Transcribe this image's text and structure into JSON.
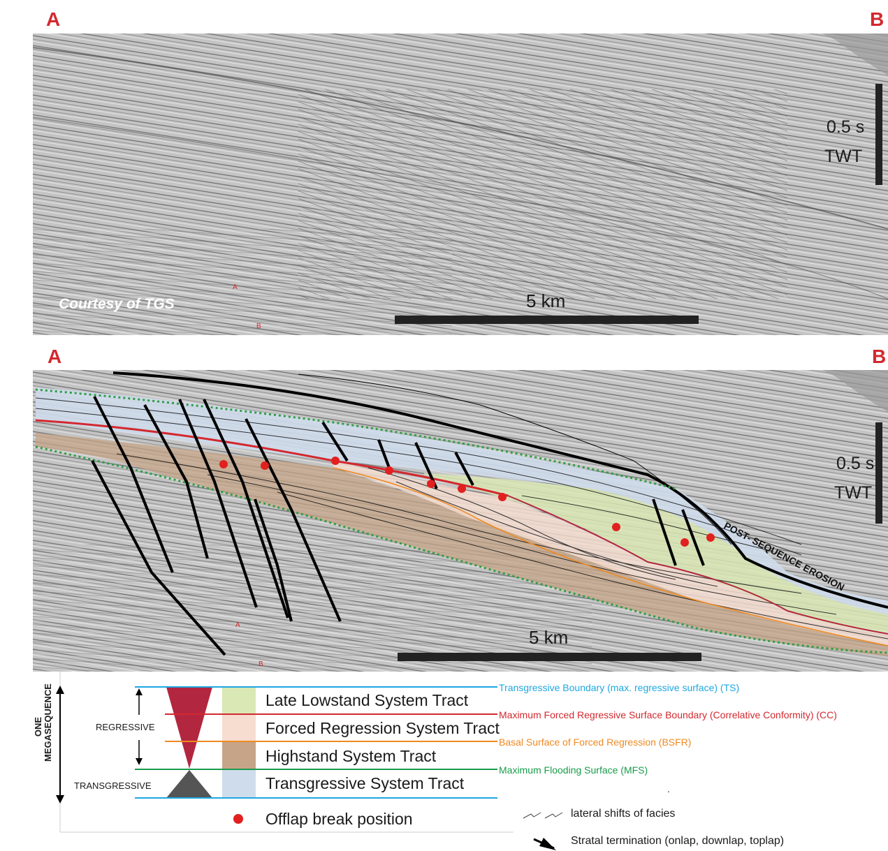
{
  "top_panel": {
    "label_left": "A",
    "label_right": "B",
    "courtesy": "Courtesy of  TGS",
    "scale_label": "5 km",
    "time_scale_value": "0.5 s",
    "time_scale_unit": "TWT",
    "small_a": "A",
    "small_b": "B"
  },
  "bottom_panel": {
    "label_left": "A",
    "label_right": "B",
    "scale_label": "5 km",
    "time_scale_value": "0.5 s",
    "time_scale_unit": "TWT",
    "erosion_label": "POST- SEQUENCE  EROSION",
    "small_a": "A",
    "small_b": "B"
  },
  "legend": {
    "megasequence_line1": "ONE",
    "megasequence_line2": "MEGASEQUENCE",
    "regressive": "REGRESSIVE",
    "transgressive": "TRANSGRESSIVE",
    "tracts": [
      {
        "label": "Late Lowstand System Tract",
        "color": "#d9e8b4"
      },
      {
        "label": "Forced Regression System Tract",
        "color": "#f6ddd0"
      },
      {
        "label": "Highstand System Tract",
        "color": "#c6a487"
      },
      {
        "label": "Transgressive System Tract",
        "color": "#cfdcec"
      }
    ],
    "surfaces": [
      {
        "label": "Transgressive Boundary (max. regressive surface) (TS)",
        "color": "#1ea7e1"
      },
      {
        "label": "Maximum Forced Regressive Surface Boundary (Correlative Conformity) (CC)",
        "color": "#d3282e"
      },
      {
        "label": "Basal Surface of Forced Regression (BSFR)",
        "color": "#ef8a22"
      },
      {
        "label": "Maximum Flooding Surface (MFS)",
        "color": "#1a9b4b"
      }
    ],
    "offlap_label": "Offlap break position",
    "lateral_shifts": "lateral shifts of facies",
    "stratal_termination": "Stratal termination (onlap, downlap, toplap)",
    "dot": "."
  },
  "colors": {
    "label_red": "#d3282e",
    "regressive_wedge": "#b3263f",
    "transgressive_wedge": "#555555",
    "mfs_dotted": "#2e9e44"
  }
}
